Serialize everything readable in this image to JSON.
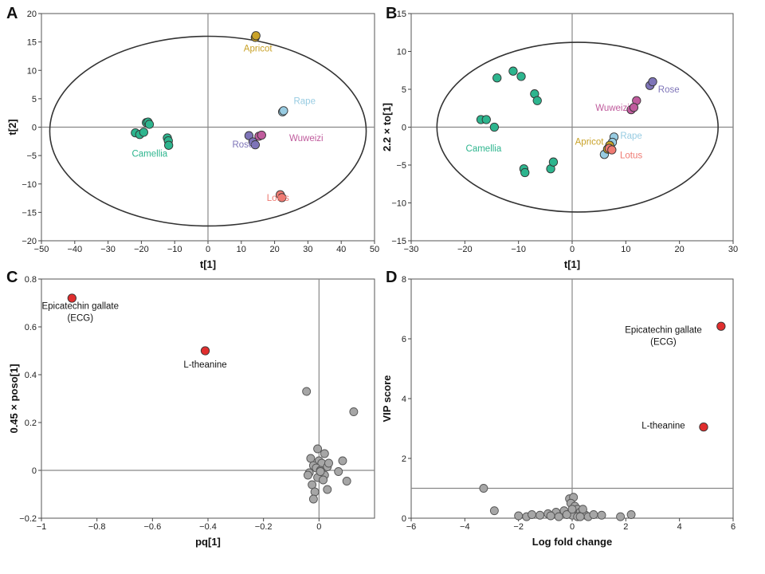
{
  "chart_data": [
    {
      "panel": "A",
      "type": "scatter",
      "xlabel": "t[1]",
      "ylabel": "t[2]",
      "xlim": [
        -50,
        50
      ],
      "ylim": [
        -20,
        20
      ],
      "xticks": [
        -50,
        -40,
        -30,
        -20,
        -10,
        0,
        10,
        20,
        30,
        40,
        50
      ],
      "yticks": [
        -20,
        -15,
        -10,
        -5,
        0,
        5,
        10,
        15,
        20
      ],
      "ellipse": {
        "cx": 0,
        "cy": -0.7,
        "rx": 47.5,
        "ry": 16.7
      },
      "groups": [
        {
          "label": "Apricot",
          "color": "#C9A227",
          "label_at": [
            15,
            13.9
          ],
          "points": [
            [
              14.2,
              15.8
            ],
            [
              14.4,
              16.1
            ]
          ]
        },
        {
          "label": "Rape",
          "color": "#98CCE2",
          "label_at": [
            29,
            4.6
          ],
          "points": [
            [
              22.4,
              2.7
            ],
            [
              22.7,
              2.9
            ]
          ]
        },
        {
          "label": "Camellia",
          "color": "#2DB58E",
          "label_at": [
            -17.5,
            -4.6
          ],
          "points": [
            [
              -21.8,
              -1.0
            ],
            [
              -20.5,
              -1.3
            ],
            [
              -19.3,
              -0.9
            ],
            [
              -18.5,
              0.8
            ],
            [
              -18.0,
              0.9
            ],
            [
              -17.6,
              0.5
            ],
            [
              -12.2,
              -1.9
            ],
            [
              -11.9,
              -2.4
            ],
            [
              -11.8,
              -3.2
            ]
          ]
        },
        {
          "label": "Rose",
          "color": "#7E74B8",
          "label_at": [
            10.5,
            -3.0
          ],
          "points": [
            [
              12.3,
              -1.5
            ],
            [
              13.5,
              -2.6
            ],
            [
              14.2,
              -3.1
            ]
          ]
        },
        {
          "label": "Wuweizi",
          "color": "#C05C9D",
          "label_at": [
            29.5,
            -1.9
          ],
          "points": [
            [
              15.3,
              -1.6
            ],
            [
              16.1,
              -1.4
            ]
          ]
        },
        {
          "label": "Lotus",
          "color": "#EF7A72",
          "label_at": [
            21,
            -12.4
          ],
          "points": [
            [
              21.7,
              -11.9
            ],
            [
              22.2,
              -12.4
            ]
          ]
        }
      ]
    },
    {
      "panel": "B",
      "type": "scatter",
      "xlabel": "t[1]",
      "ylabel": "2.2 × to[1]",
      "xlim": [
        -30,
        30
      ],
      "ylim": [
        -15,
        15
      ],
      "xticks": [
        -30,
        -20,
        -10,
        0,
        10,
        20,
        30
      ],
      "yticks": [
        -15,
        -10,
        -5,
        0,
        5,
        10,
        15
      ],
      "ellipse": {
        "cx": 1,
        "cy": 0,
        "rx": 26.2,
        "ry": 11.2
      },
      "groups": [
        {
          "label": "Camellia",
          "color": "#2DB58E",
          "label_at": [
            -16.5,
            -2.8
          ],
          "points": [
            [
              -14.0,
              6.5
            ],
            [
              -11.0,
              7.4
            ],
            [
              -9.5,
              6.7
            ],
            [
              -7.0,
              4.4
            ],
            [
              -6.5,
              3.5
            ],
            [
              -17.0,
              1.0
            ],
            [
              -16.0,
              1.0
            ],
            [
              -14.5,
              0.0
            ],
            [
              -9.0,
              -5.5
            ],
            [
              -8.8,
              -6.0
            ],
            [
              -4.0,
              -5.5
            ],
            [
              -3.5,
              -4.6
            ]
          ]
        },
        {
          "label": "Rose",
          "color": "#7E74B8",
          "label_at": [
            18,
            5.0
          ],
          "points": [
            [
              14.5,
              5.5
            ],
            [
              15.0,
              6.0
            ]
          ]
        },
        {
          "label": "Wuweizi",
          "color": "#C05C9D",
          "label_at": [
            7.5,
            2.6
          ],
          "points": [
            [
              11.0,
              2.3
            ],
            [
              12.0,
              3.5
            ],
            [
              11.5,
              2.6
            ]
          ]
        },
        {
          "label": "Rape",
          "color": "#98CCE2",
          "label_at": [
            11,
            -1.1
          ],
          "points": [
            [
              7.8,
              -1.3
            ],
            [
              6.0,
              -3.6
            ],
            [
              7.5,
              -2.0
            ]
          ]
        },
        {
          "label": "Apricot",
          "color": "#C9A227",
          "label_at": [
            3.2,
            -1.9
          ],
          "points": [
            [
              7.0,
              -2.4
            ],
            [
              6.6,
              -2.9
            ]
          ]
        },
        {
          "label": "Lotus",
          "color": "#EF7A72",
          "label_at": [
            11,
            -3.7
          ],
          "points": [
            [
              6.9,
              -2.8
            ],
            [
              7.4,
              -3.0
            ]
          ]
        }
      ]
    },
    {
      "panel": "C",
      "type": "scatter",
      "xlabel": "pq[1]",
      "ylabel": "0.45 × poso[1]",
      "xlim": [
        -1.0,
        0.2
      ],
      "ylim": [
        -0.2,
        0.8
      ],
      "xticks": [
        -1.0,
        -0.8,
        -0.6,
        -0.4,
        -0.2,
        0
      ],
      "yticks": [
        -0.2,
        0,
        0.2,
        0.4,
        0.6,
        0.8
      ],
      "annotations": [
        {
          "lines": [
            "Epicatechin gallate",
            "(ECG)"
          ],
          "at": [
            -0.86,
            0.675
          ]
        },
        {
          "lines": [
            "L-theanine"
          ],
          "at": [
            -0.41,
            0.43
          ]
        }
      ],
      "highlight_points": [
        [
          -0.89,
          0.72
        ],
        [
          -0.41,
          0.5
        ]
      ],
      "grey_points": [
        [
          -0.045,
          0.33
        ],
        [
          0.125,
          0.245
        ],
        [
          -0.005,
          0.09
        ],
        [
          0.02,
          0.07
        ],
        [
          -0.03,
          0.05
        ],
        [
          0.0,
          0.04
        ],
        [
          0.01,
          0.03
        ],
        [
          -0.02,
          0.02
        ],
        [
          0.03,
          0.015
        ],
        [
          -0.01,
          0.01
        ],
        [
          0.005,
          0.0
        ],
        [
          -0.035,
          -0.01
        ],
        [
          0.02,
          -0.02
        ],
        [
          -0.005,
          -0.03
        ],
        [
          0.015,
          -0.04
        ],
        [
          -0.025,
          -0.06
        ],
        [
          0.085,
          0.04
        ],
        [
          0.1,
          -0.045
        ],
        [
          0.07,
          -0.005
        ],
        [
          -0.015,
          -0.09
        ],
        [
          0.03,
          -0.08
        ],
        [
          -0.02,
          -0.12
        ],
        [
          0.005,
          -0.005
        ],
        [
          0.035,
          0.03
        ],
        [
          -0.04,
          -0.02
        ]
      ]
    },
    {
      "panel": "D",
      "type": "scatter",
      "xlabel": "Log fold change",
      "ylabel": "VIP score",
      "xlim": [
        -6,
        6
      ],
      "ylim": [
        0,
        8
      ],
      "xticks": [
        -6,
        -4,
        -2,
        0,
        2,
        4,
        6
      ],
      "yticks": [
        0,
        2,
        4,
        6,
        8
      ],
      "threshold_y": 1,
      "annotations": [
        {
          "lines": [
            "Epicatechin gallate",
            "(ECG)"
          ],
          "at": [
            3.4,
            6.2
          ]
        },
        {
          "lines": [
            "L-theanine"
          ],
          "at": [
            3.4,
            3.0
          ]
        }
      ],
      "highlight_points": [
        [
          5.55,
          6.42
        ],
        [
          4.9,
          3.05
        ]
      ],
      "grey_points": [
        [
          -3.3,
          1.0
        ],
        [
          -2.9,
          0.25
        ],
        [
          -2.0,
          0.08
        ],
        [
          -1.7,
          0.05
        ],
        [
          -1.2,
          0.1
        ],
        [
          -0.9,
          0.15
        ],
        [
          -0.6,
          0.2
        ],
        [
          -0.3,
          0.25
        ],
        [
          -0.1,
          0.65
        ],
        [
          0.05,
          0.7
        ],
        [
          -0.05,
          0.5
        ],
        [
          0.1,
          0.4
        ],
        [
          0.2,
          0.3
        ],
        [
          0.3,
          0.2
        ],
        [
          0.4,
          0.15
        ],
        [
          0.5,
          0.1
        ],
        [
          0.6,
          0.05
        ],
        [
          -0.5,
          0.05
        ],
        [
          0.0,
          0.1
        ],
        [
          0.2,
          0.05
        ],
        [
          1.1,
          0.1
        ],
        [
          1.8,
          0.05
        ],
        [
          2.2,
          0.12
        ],
        [
          -1.5,
          0.12
        ],
        [
          -0.8,
          0.08
        ],
        [
          0.8,
          0.12
        ],
        [
          0.4,
          0.3
        ],
        [
          -0.2,
          0.12
        ],
        [
          0.0,
          0.3
        ],
        [
          0.3,
          0.05
        ]
      ]
    }
  ]
}
